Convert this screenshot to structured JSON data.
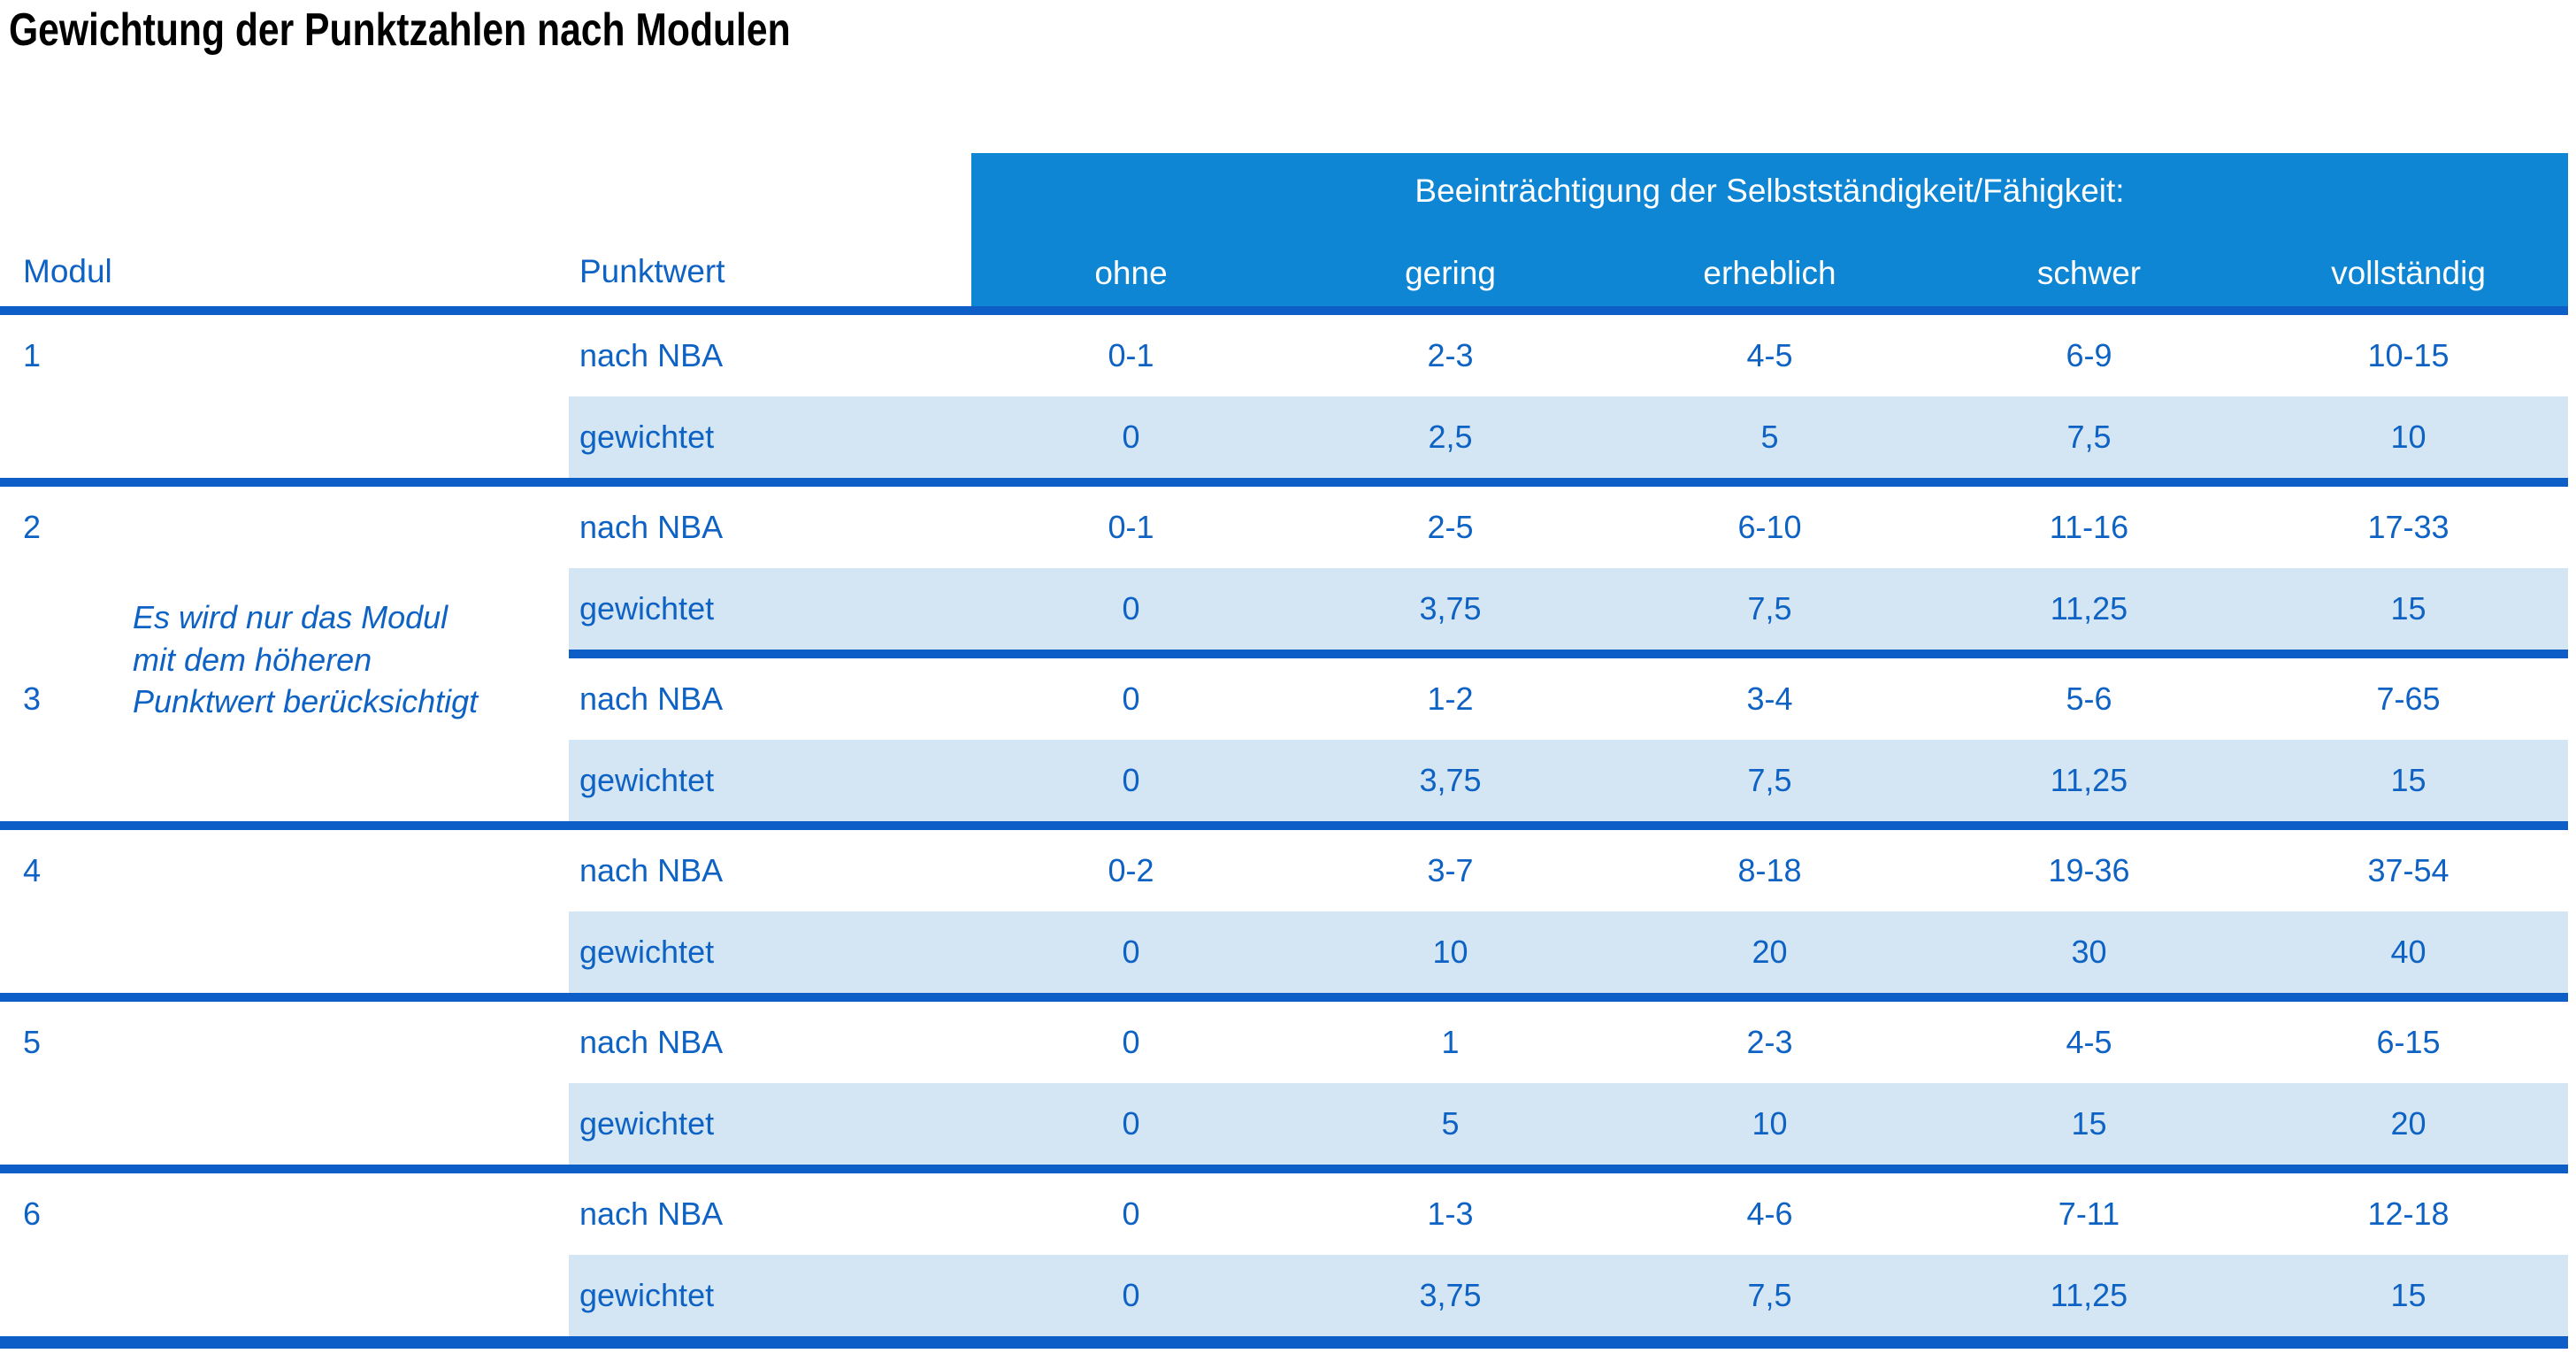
{
  "title": "Gewichtung der Punktzahlen nach Modulen",
  "table": {
    "col_headers": {
      "modul": "Modul",
      "punktwert": "Punktwert"
    },
    "group_header": "Beeinträchtigung der Selbstständigkeit/Fähigkeit:",
    "severity_labels": [
      "ohne",
      "gering",
      "erheblich",
      "schwer",
      "vollständig"
    ],
    "row_labels": {
      "nba": "nach NBA",
      "weighted": "gewichtet"
    },
    "note_lines": [
      "Es wird nur das Modul",
      "mit dem höheren",
      "Punktwert berücksichtigt"
    ],
    "modules": [
      {
        "id": "1",
        "nba": [
          "0-1",
          "2-3",
          "4-5",
          "6-9",
          "10-15"
        ],
        "weighted": [
          "0",
          "2,5",
          "5",
          "7,5",
          "10"
        ]
      },
      {
        "id": "2",
        "nba": [
          "0-1",
          "2-5",
          "6-10",
          "11-16",
          "17-33"
        ],
        "weighted": [
          "0",
          "3,75",
          "7,5",
          "11,25",
          "15"
        ]
      },
      {
        "id": "3",
        "nba": [
          "0",
          "1-2",
          "3-4",
          "5-6",
          "7-65"
        ],
        "weighted": [
          "0",
          "3,75",
          "7,5",
          "11,25",
          "15"
        ]
      },
      {
        "id": "4",
        "nba": [
          "0-2",
          "3-7",
          "8-18",
          "19-36",
          "37-54"
        ],
        "weighted": [
          "0",
          "10",
          "20",
          "30",
          "40"
        ]
      },
      {
        "id": "5",
        "nba": [
          "0",
          "1",
          "2-3",
          "4-5",
          "6-15"
        ],
        "weighted": [
          "0",
          "5",
          "10",
          "15",
          "20"
        ]
      },
      {
        "id": "6",
        "nba": [
          "0",
          "1-3",
          "4-6",
          "7-11",
          "12-18"
        ],
        "weighted": [
          "0",
          "3,75",
          "7,5",
          "11,25",
          "15"
        ]
      }
    ]
  },
  "colors": {
    "header_bg": "#0e86d4",
    "line": "#0d5ec6",
    "stripe": "#d4e6f4",
    "text": "#0d62c4"
  }
}
